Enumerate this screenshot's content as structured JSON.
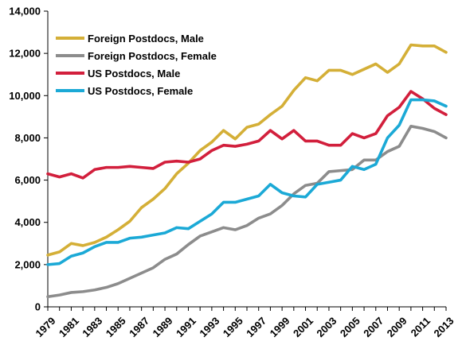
{
  "chart_data": {
    "type": "line",
    "title": "",
    "xlabel": "",
    "ylabel": "",
    "ylim": [
      0,
      14000
    ],
    "xlim": [
      1979,
      2013
    ],
    "grid": false,
    "legend_position": "top-left",
    "x_tick_labels": [
      "1979",
      "1981",
      "1983",
      "1985",
      "1987",
      "1989",
      "1991",
      "1993",
      "1995",
      "1997",
      "1999",
      "2001",
      "2003",
      "2005",
      "2007",
      "2009",
      "2011",
      "2013"
    ],
    "y_tick_labels": [
      "0",
      "2,000",
      "4,000",
      "6,000",
      "8,000",
      "10,000",
      "12,000",
      "14,000"
    ],
    "y_ticks": [
      0,
      2000,
      4000,
      6000,
      8000,
      10000,
      12000,
      14000
    ],
    "x": [
      1979,
      1980,
      1981,
      1982,
      1983,
      1984,
      1985,
      1986,
      1987,
      1988,
      1989,
      1990,
      1991,
      1992,
      1993,
      1994,
      1995,
      1996,
      1997,
      1998,
      1999,
      2000,
      2001,
      2002,
      2003,
      2004,
      2005,
      2006,
      2007,
      2008,
      2009,
      2010,
      2011,
      2012,
      2013
    ],
    "series": [
      {
        "name": "Foreign Postdocs, Male",
        "color": "#D4AF37",
        "values": [
          2450,
          2600,
          3000,
          2900,
          3050,
          3300,
          3650,
          4050,
          4700,
          5100,
          5600,
          6300,
          6800,
          7400,
          7800,
          8350,
          7950,
          8500,
          8650,
          9100,
          9500,
          10250,
          10850,
          10700,
          11200,
          11200,
          11000,
          11250,
          11500,
          11100,
          11500,
          12400,
          12350,
          12350,
          12050
        ]
      },
      {
        "name": "Foreign Postdocs, Female",
        "color": "#8C8C8C",
        "values": [
          480,
          560,
          680,
          720,
          800,
          920,
          1100,
          1350,
          1600,
          1850,
          2250,
          2500,
          2950,
          3350,
          3550,
          3750,
          3650,
          3850,
          4200,
          4400,
          4800,
          5350,
          5750,
          5850,
          6400,
          6450,
          6500,
          6950,
          6950,
          7350,
          7600,
          8550,
          8450,
          8300,
          8000
        ]
      },
      {
        "name": "US Postdocs, Male",
        "color": "#D21F3C",
        "values": [
          6300,
          6150,
          6300,
          6100,
          6500,
          6600,
          6600,
          6650,
          6600,
          6550,
          6850,
          6900,
          6850,
          7000,
          7400,
          7650,
          7600,
          7700,
          7850,
          8350,
          7950,
          8350,
          7850,
          7850,
          7650,
          7650,
          8200,
          8000,
          8200,
          9050,
          9450,
          10200,
          9850,
          9400,
          9100
        ]
      },
      {
        "name": "US Postdocs, Female",
        "color": "#1BA9D6",
        "values": [
          2000,
          2050,
          2400,
          2550,
          2850,
          3050,
          3050,
          3250,
          3300,
          3400,
          3500,
          3750,
          3700,
          4050,
          4400,
          4950,
          4950,
          5100,
          5250,
          5800,
          5400,
          5250,
          5200,
          5800,
          5900,
          6000,
          6650,
          6500,
          6750,
          8000,
          8600,
          9800,
          9800,
          9750,
          9500
        ]
      }
    ]
  }
}
